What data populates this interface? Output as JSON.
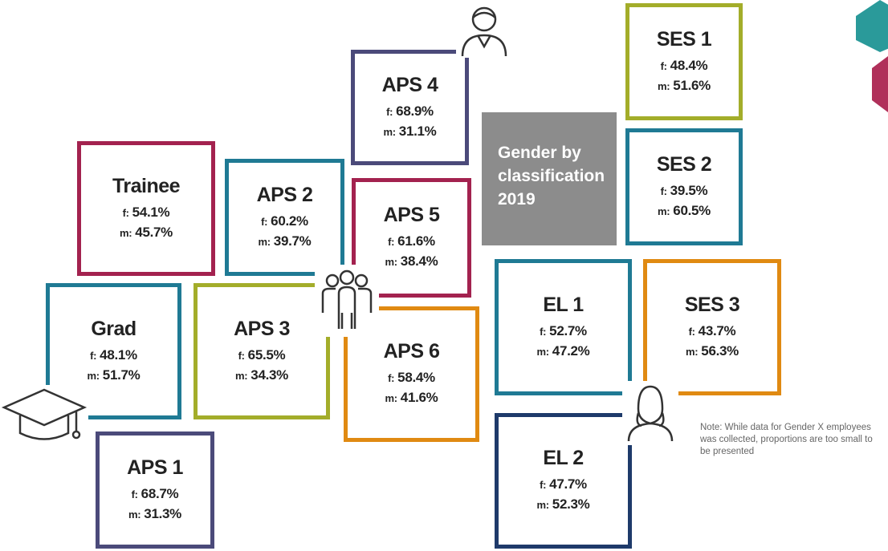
{
  "title": "Gender by classification 2019",
  "note": "Note: While data for Gender X employees was collected, proportions are too small to be presented",
  "boxes": [
    {
      "title": "APS 4",
      "f_label": "f:",
      "f": "68.9%",
      "m_label": "m:",
      "m": "31.1%"
    },
    {
      "title": "Trainee",
      "f_label": "f:",
      "f": "54.1%",
      "m_label": "m:",
      "m": "45.7%"
    },
    {
      "title": "APS 2",
      "f_label": "f:",
      "f": "60.2%",
      "m_label": "m:",
      "m": "39.7%"
    },
    {
      "title": "APS 5",
      "f_label": "f:",
      "f": "61.6%",
      "m_label": "m:",
      "m": "38.4%"
    },
    {
      "title": "Grad",
      "f_label": "f:",
      "f": "48.1%",
      "m_label": "m:",
      "m": "51.7%"
    },
    {
      "title": "APS 3",
      "f_label": "f:",
      "f": "65.5%",
      "m_label": "m:",
      "m": "34.3%"
    },
    {
      "title": "APS 6",
      "f_label": "f:",
      "f": "58.4%",
      "m_label": "m:",
      "m": "41.6%"
    },
    {
      "title": "APS 1",
      "f_label": "f:",
      "f": "68.7%",
      "m_label": "m:",
      "m": "31.3%"
    },
    {
      "title": "SES 1",
      "f_label": "f:",
      "f": "48.4%",
      "m_label": "m:",
      "m": "51.6%"
    },
    {
      "title": "SES 2",
      "f_label": "f:",
      "f": "39.5%",
      "m_label": "m:",
      "m": "60.5%"
    },
    {
      "title": "EL 1",
      "f_label": "f:",
      "f": "52.7%",
      "m_label": "m:",
      "m": "47.2%"
    },
    {
      "title": "SES 3",
      "f_label": "f:",
      "f": "43.7%",
      "m_label": "m:",
      "m": "56.3%"
    },
    {
      "title": "EL 2",
      "f_label": "f:",
      "f": "47.7%",
      "m_label": "m:",
      "m": "52.3%"
    }
  ]
}
